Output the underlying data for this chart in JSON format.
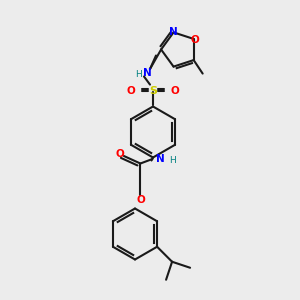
{
  "bg_color": "#ececec",
  "bond_color": "#1a1a1a",
  "bond_width": 1.5,
  "atom_colors": {
    "N": "#0000ff",
    "O": "#ff0000",
    "S": "#cccc00",
    "H": "#008080",
    "C": "#1a1a1a"
  }
}
